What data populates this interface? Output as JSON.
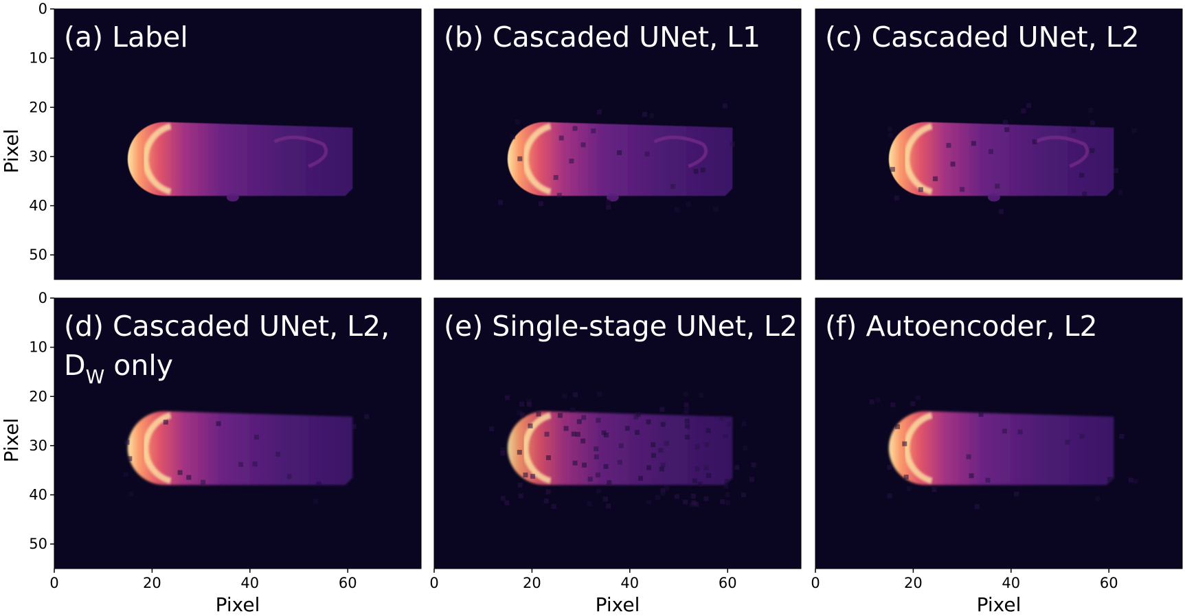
{
  "chart_data": {
    "type": "heatmap",
    "colormap": "magma",
    "colors": {
      "background": "#0a0621",
      "low": "#2d1152",
      "mid": "#8c2b84",
      "high": "#f06a5b",
      "peak": "#fde3a3"
    },
    "x_axis": {
      "range": [
        0,
        75
      ],
      "ticks": [
        "0",
        "20",
        "40",
        "60"
      ],
      "label": "Pixel"
    },
    "y_axis": {
      "range": [
        0,
        55
      ],
      "ticks": [
        "0",
        "10",
        "20",
        "30",
        "40",
        "50"
      ],
      "label": "Pixel",
      "inverted": true
    },
    "object": {
      "x_range": [
        15,
        61
      ],
      "y_range": [
        23,
        38
      ],
      "bright_edge_x": 17,
      "rear_x": 61
    },
    "panels": [
      {
        "id": "a",
        "title": "(a) Label",
        "subtitle_main": "",
        "subtitle_sub": "",
        "subtitle_rest": "",
        "texture": "sharp",
        "noise": 0.0
      },
      {
        "id": "b",
        "title": "(b) Cascaded UNet, L1",
        "subtitle_main": "",
        "subtitle_sub": "",
        "subtitle_rest": "",
        "texture": "sharp",
        "noise": 0.03
      },
      {
        "id": "c",
        "title": "(c) Cascaded UNet, L2",
        "subtitle_main": "",
        "subtitle_sub": "",
        "subtitle_rest": "",
        "texture": "sharp",
        "noise": 0.03
      },
      {
        "id": "d",
        "title": "(d) Cascaded UNet, L2,",
        "subtitle_main": "D",
        "subtitle_sub": "W",
        "subtitle_rest": " only",
        "texture": "smooth",
        "noise": 0.02
      },
      {
        "id": "e",
        "title": "(e) Single-stage UNet, L2",
        "subtitle_main": "",
        "subtitle_sub": "",
        "subtitle_rest": "",
        "texture": "faint",
        "noise": 0.12
      },
      {
        "id": "f",
        "title": "(f) Autoencoder, L2",
        "subtitle_main": "",
        "subtitle_sub": "",
        "subtitle_rest": "",
        "texture": "smooth",
        "noise": 0.03
      }
    ]
  }
}
